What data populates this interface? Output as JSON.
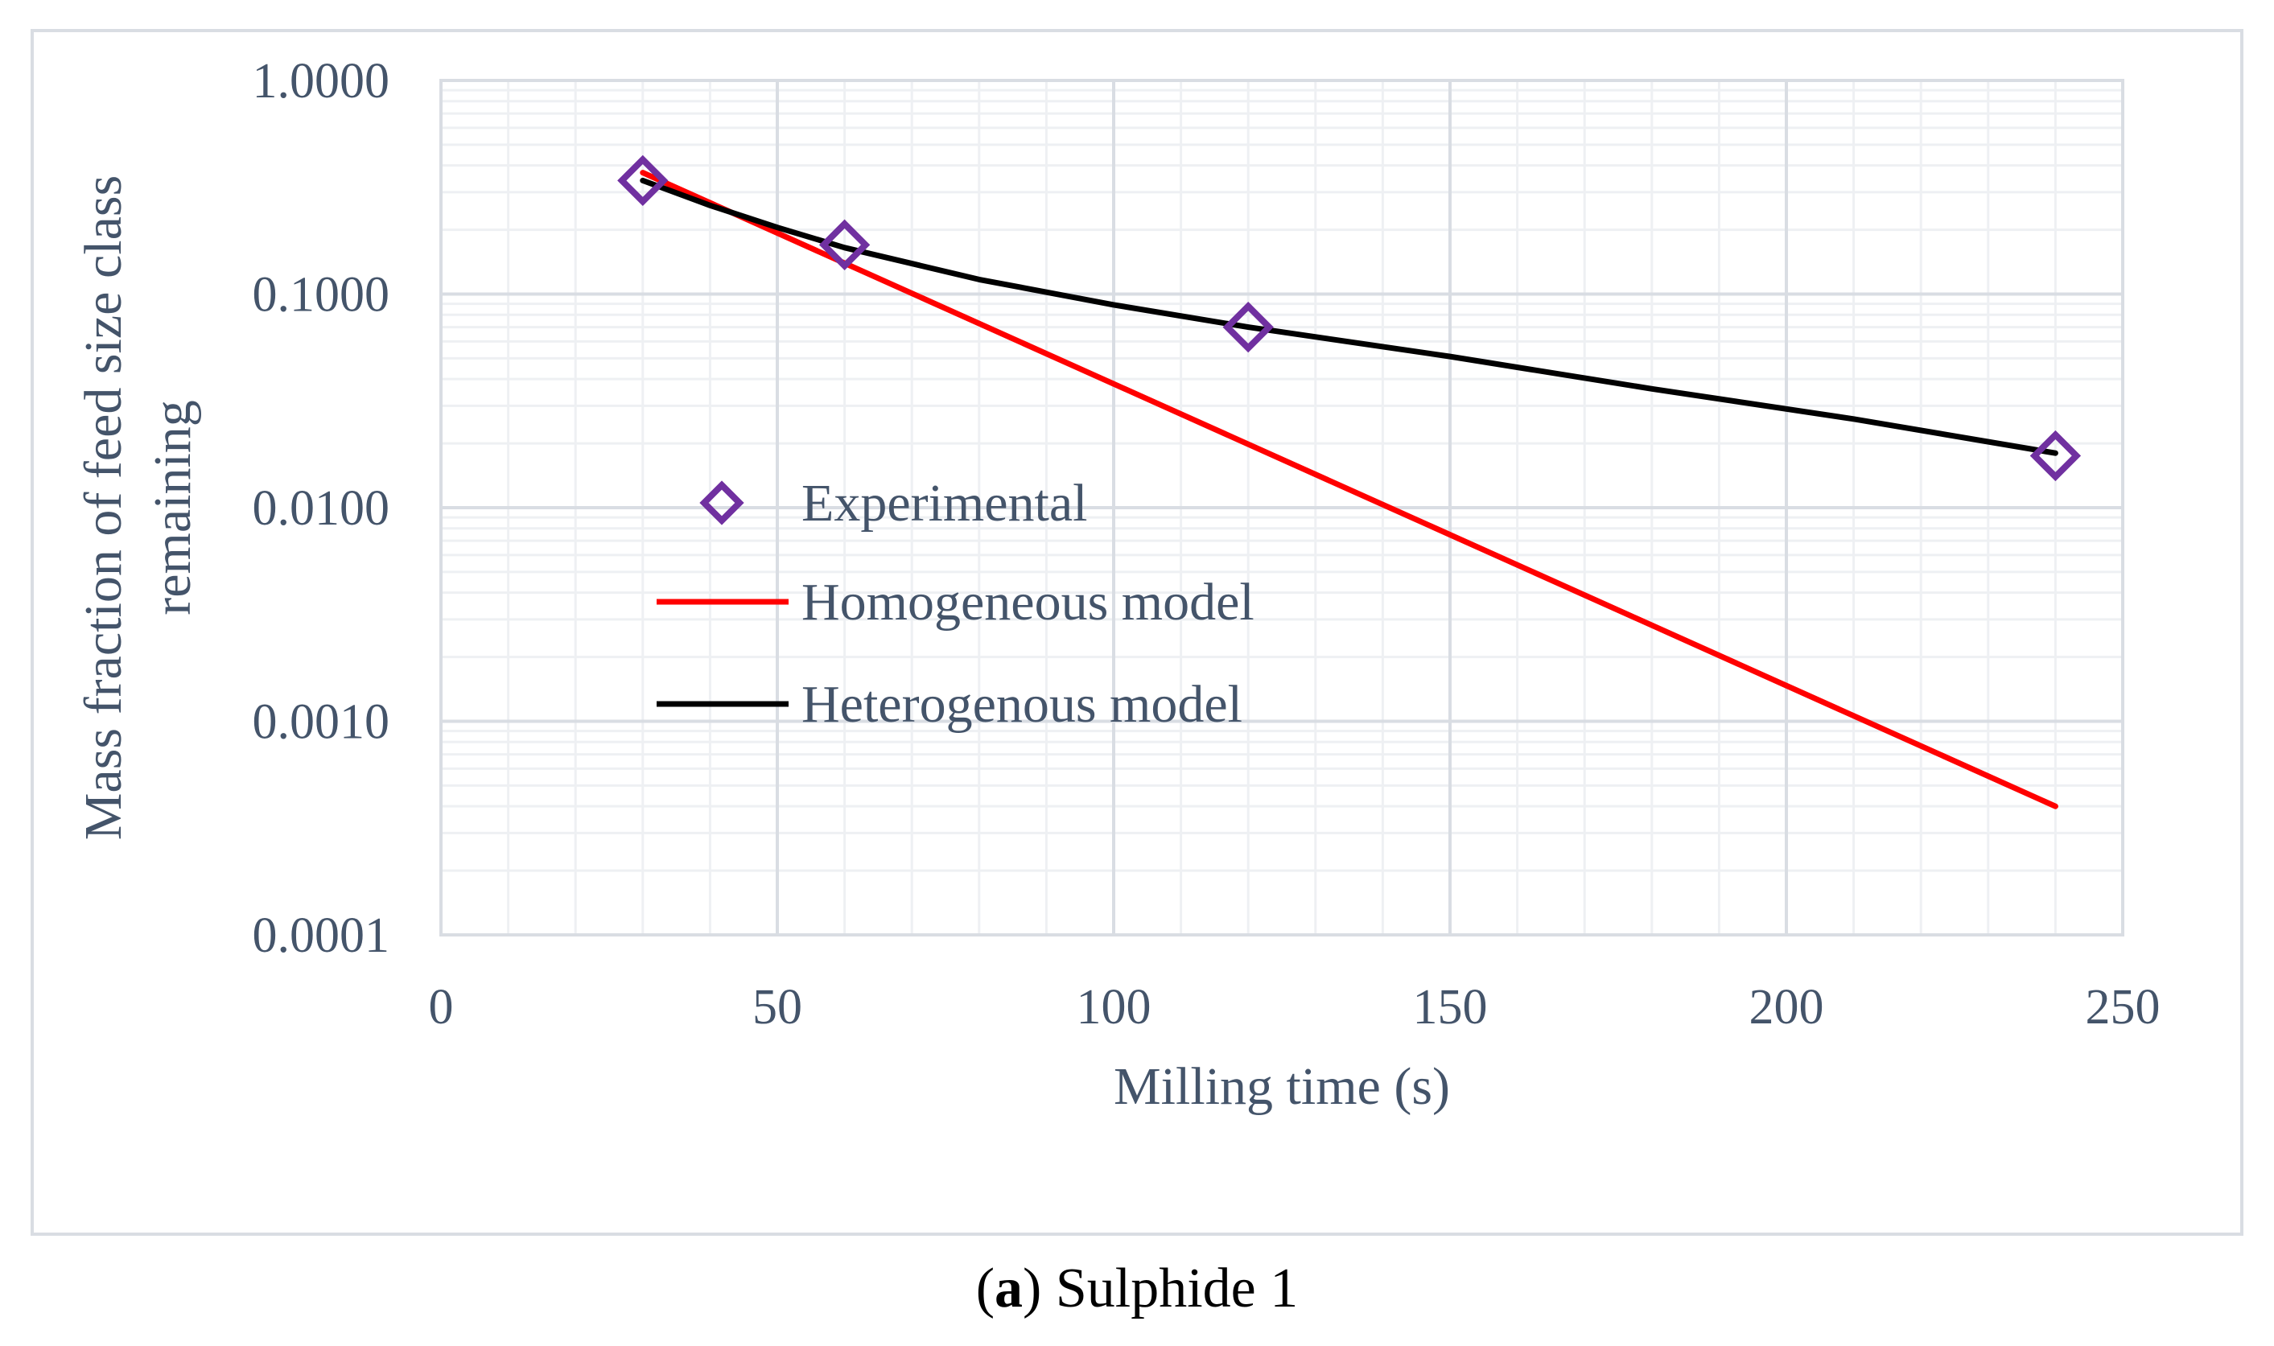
{
  "chart_data": {
    "type": "scatter+line",
    "yscale": "log",
    "xlabel": "Milling time (s)",
    "ylabel_lines": [
      "Mass fraction of feed size class",
      "remaining"
    ],
    "xlim": [
      0,
      250
    ],
    "ylim": [
      0.0001,
      1.0
    ],
    "x_ticks": [
      0,
      50,
      100,
      150,
      200,
      250
    ],
    "x_tick_labels": [
      "0",
      "50",
      "100",
      "150",
      "200",
      "250"
    ],
    "y_ticks": [
      1.0,
      0.1,
      0.01,
      0.001,
      0.0001
    ],
    "y_tick_labels": [
      "1.0000",
      "0.1000",
      "0.0100",
      "0.0010",
      "0.0001"
    ],
    "series": [
      {
        "name": "Experimental",
        "kind": "markers",
        "marker": "diamond",
        "color": "#7030a0",
        "x": [
          30,
          60,
          120,
          240
        ],
        "y": [
          0.34,
          0.17,
          0.07,
          0.0175
        ]
      },
      {
        "name": "Homogeneous model",
        "kind": "line",
        "color": "#ff0000",
        "x": [
          30,
          240
        ],
        "y": [
          0.37,
          0.0004
        ]
      },
      {
        "name": "Heterogenous model",
        "kind": "line",
        "color": "#000000",
        "x": [
          30,
          40,
          50,
          60,
          80,
          100,
          120,
          150,
          180,
          210,
          240
        ],
        "y": [
          0.34,
          0.26,
          0.205,
          0.165,
          0.117,
          0.089,
          0.07,
          0.051,
          0.036,
          0.026,
          0.018
        ]
      }
    ],
    "legend_position": "center-left inside plot"
  },
  "caption": {
    "label": "(a)",
    "letter": "a",
    "text": "Sulphide 1"
  }
}
